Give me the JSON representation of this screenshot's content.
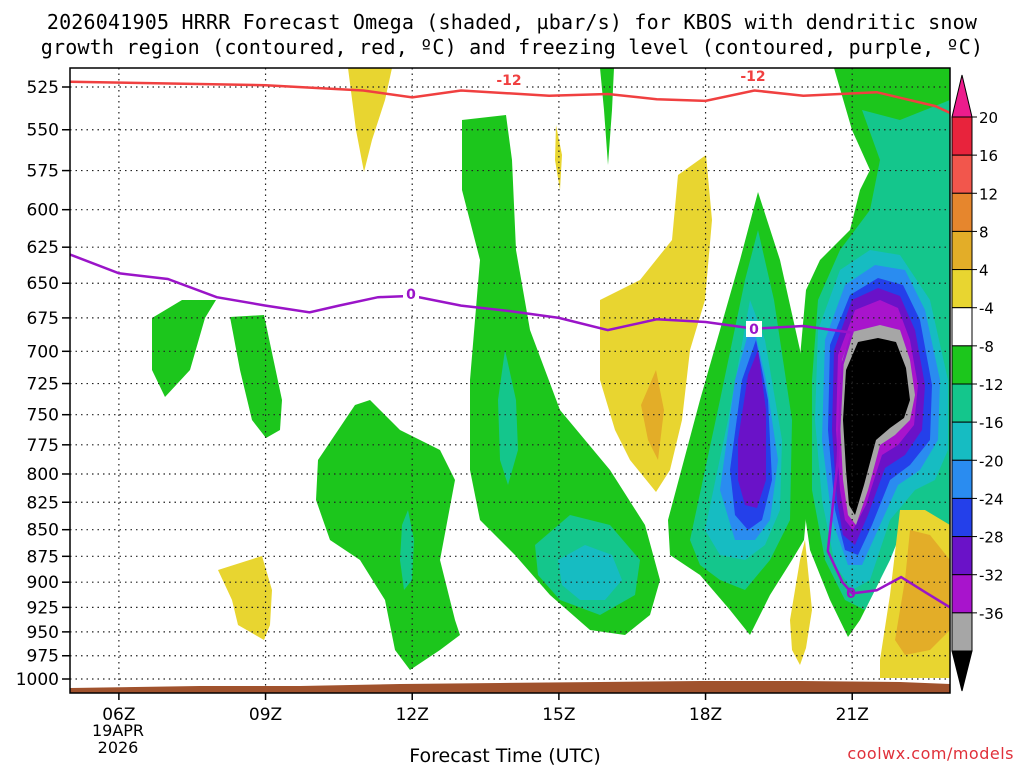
{
  "chart_data": {
    "type": "heatmap",
    "title_line1": "2026041905 HRRR Forecast Omega (shaded, µbar/s) for KBOS with dendritic snow",
    "title_line2": "growth region (contoured, red, ºC) and freezing level (contoured, purple, ºC)",
    "xlabel": "Forecast Time (UTC)",
    "credit": "coolwx.com/models",
    "x_ticks": [
      {
        "hour": 6,
        "label": "06Z"
      },
      {
        "hour": 9,
        "label": "09Z"
      },
      {
        "hour": 12,
        "label": "12Z"
      },
      {
        "hour": 15,
        "label": "15Z"
      },
      {
        "hour": 18,
        "label": "18Z"
      },
      {
        "hour": 21,
        "label": "21Z"
      }
    ],
    "date_label_line1": "19APR",
    "date_label_line2": "2026",
    "xlim_hours": [
      5,
      23
    ],
    "y_ticks_hPa": [
      525,
      550,
      575,
      600,
      625,
      650,
      675,
      700,
      725,
      750,
      775,
      800,
      825,
      850,
      875,
      900,
      925,
      950,
      975,
      1000
    ],
    "colorbar": {
      "labels": [
        "20",
        "16",
        "12",
        "8",
        "4",
        "-4",
        "-8",
        "-12",
        "-16",
        "-20",
        "-24",
        "-28",
        "-32",
        "-36"
      ],
      "bins": [
        {
          "from": 16,
          "to": 20,
          "color": "#e8233c"
        },
        {
          "from": 12,
          "to": 16,
          "color": "#f2564c"
        },
        {
          "from": 8,
          "to": 12,
          "color": "#e6862d"
        },
        {
          "from": 4,
          "to": 8,
          "color": "#e3ad28"
        },
        {
          "from": 0,
          "to": 4,
          "color": "#e8d530"
        },
        {
          "from": -4,
          "to": 0,
          "color": "#ffffff"
        },
        {
          "from": -8,
          "to": -4,
          "color": "#1cc61c"
        },
        {
          "from": -12,
          "to": -8,
          "color": "#14c68c"
        },
        {
          "from": -16,
          "to": -12,
          "color": "#16bcc2"
        },
        {
          "from": -20,
          "to": -16,
          "color": "#2a8cf0"
        },
        {
          "from": -24,
          "to": -20,
          "color": "#2440ea"
        },
        {
          "from": -28,
          "to": -24,
          "color": "#6a12c8"
        },
        {
          "from": -32,
          "to": -28,
          "color": "#a814cc"
        },
        {
          "from": -36,
          "to": -32,
          "color": "#a6a6a6"
        }
      ],
      "top_arrow_color": "#ec1c8c",
      "bottom_arrow_color": "#000000"
    },
    "omega_features": [
      {
        "name": "ascent-core-21z",
        "center_hour": 21.0,
        "center_hPa": 770,
        "min_value": -40
      },
      {
        "name": "ascent-band-19z",
        "center_hour": 19.0,
        "center_hPa": 760,
        "min_value": -28
      },
      {
        "name": "descent-17z",
        "center_hour": 17.0,
        "center_hPa": 750,
        "max_value": 8
      },
      {
        "name": "descent-22z",
        "center_hour": 22.3,
        "center_hPa": 930,
        "max_value": 8
      }
    ],
    "red_contour": {
      "label": "-12",
      "color": "#f04040",
      "points": [
        [
          5,
          522
        ],
        [
          9,
          524
        ],
        [
          11,
          527
        ],
        [
          12,
          531
        ],
        [
          13,
          527
        ],
        [
          14.8,
          530
        ],
        [
          16,
          529
        ],
        [
          17,
          532
        ],
        [
          18,
          533
        ],
        [
          19,
          527
        ],
        [
          20,
          530
        ],
        [
          21.5,
          528
        ],
        [
          22.7,
          536
        ],
        [
          23,
          540
        ]
      ]
    },
    "purple_contour": {
      "label": "0",
      "color": "#9a14c8",
      "points": [
        [
          5,
          630
        ],
        [
          6,
          643
        ],
        [
          7,
          647
        ],
        [
          8,
          660
        ],
        [
          9,
          666
        ],
        [
          9.9,
          671
        ],
        [
          10.5,
          666
        ],
        [
          11.3,
          660
        ],
        [
          12,
          659
        ],
        [
          13,
          666
        ],
        [
          14,
          670
        ],
        [
          15,
          675
        ],
        [
          16,
          684
        ],
        [
          17,
          676
        ],
        [
          18,
          678
        ],
        [
          19,
          683
        ],
        [
          20,
          681
        ],
        [
          21,
          686
        ],
        [
          20.8,
          710
        ],
        [
          20.7,
          790
        ],
        [
          20.5,
          870
        ],
        [
          20.8,
          900
        ],
        [
          21,
          911
        ],
        [
          21.5,
          908
        ],
        [
          22,
          895
        ],
        [
          22.5,
          910
        ],
        [
          23,
          925
        ]
      ]
    }
  }
}
